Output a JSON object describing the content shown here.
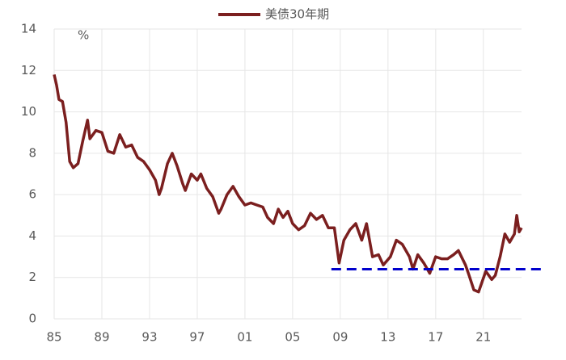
{
  "chart_data": {
    "type": "line",
    "legend_position": "top",
    "y_unit_label": "%",
    "x": [
      1985.0,
      1985.2,
      1985.4,
      1985.7,
      1986.0,
      1986.3,
      1986.6,
      1987.0,
      1987.4,
      1987.8,
      1988.0,
      1988.5,
      1989.0,
      1989.5,
      1990.0,
      1990.5,
      1991.0,
      1991.5,
      1992.0,
      1992.5,
      1993.0,
      1993.5,
      1993.8,
      1994.0,
      1994.5,
      1994.9,
      1995.3,
      1995.8,
      1996.0,
      1996.5,
      1997.0,
      1997.3,
      1997.8,
      1998.3,
      1998.8,
      1999.0,
      1999.5,
      2000.0,
      2000.5,
      2001.0,
      2001.5,
      2002.0,
      2002.5,
      2002.9,
      2003.4,
      2003.8,
      2004.2,
      2004.6,
      2005.0,
      2005.5,
      2006.0,
      2006.5,
      2007.0,
      2007.5,
      2008.0,
      2008.5,
      2008.9,
      2009.3,
      2009.8,
      2010.3,
      2010.8,
      2011.2,
      2011.7,
      2012.2,
      2012.6,
      2013.2,
      2013.7,
      2014.2,
      2014.8,
      2015.1,
      2015.5,
      2016.0,
      2016.5,
      2017.0,
      2017.5,
      2018.0,
      2018.5,
      2018.9,
      2019.5,
      2019.8,
      2020.2,
      2020.6,
      2021.2,
      2021.7,
      2022.0,
      2022.4,
      2022.8,
      2023.2,
      2023.6,
      2023.8,
      2024.0,
      2024.2
    ],
    "series": [
      {
        "name": "美债30年期",
        "color": "#7b1f1f",
        "values": [
          11.8,
          11.3,
          10.6,
          10.5,
          9.5,
          7.6,
          7.3,
          7.5,
          8.6,
          9.6,
          8.7,
          9.1,
          9.0,
          8.1,
          8.0,
          8.9,
          8.3,
          8.4,
          7.8,
          7.6,
          7.2,
          6.7,
          6.0,
          6.3,
          7.5,
          8.0,
          7.4,
          6.5,
          6.2,
          7.0,
          6.7,
          7.0,
          6.3,
          5.9,
          5.1,
          5.3,
          6.0,
          6.4,
          5.9,
          5.5,
          5.6,
          5.5,
          5.4,
          4.9,
          4.6,
          5.3,
          4.9,
          5.2,
          4.6,
          4.3,
          4.5,
          5.1,
          4.8,
          5.0,
          4.4,
          4.4,
          2.7,
          3.8,
          4.3,
          4.6,
          3.8,
          4.6,
          3.0,
          3.1,
          2.6,
          3.0,
          3.8,
          3.6,
          3.0,
          2.4,
          3.1,
          2.7,
          2.2,
          3.0,
          2.9,
          2.9,
          3.1,
          3.3,
          2.6,
          2.1,
          1.4,
          1.3,
          2.3,
          1.9,
          2.1,
          3.0,
          4.1,
          3.7,
          4.1,
          5.0,
          4.2,
          4.4
        ]
      }
    ],
    "reference_line": {
      "value": 2.4,
      "x_start": 2008.25,
      "color": "#0000cc"
    },
    "xlim": [
      1985,
      2024.2
    ],
    "xticks": [
      {
        "value": 1985,
        "label": "85"
      },
      {
        "value": 1989,
        "label": "89"
      },
      {
        "value": 1993,
        "label": "93"
      },
      {
        "value": 1997,
        "label": "97"
      },
      {
        "value": 2001,
        "label": "01"
      },
      {
        "value": 2005,
        "label": "05"
      },
      {
        "value": 2009,
        "label": "09"
      },
      {
        "value": 2013,
        "label": "13"
      },
      {
        "value": 2017,
        "label": "17"
      },
      {
        "value": 2021,
        "label": "21"
      }
    ],
    "ylim": [
      0,
      14
    ],
    "yticks": [
      0,
      2,
      4,
      6,
      8,
      10,
      12,
      14
    ],
    "grid": true
  }
}
